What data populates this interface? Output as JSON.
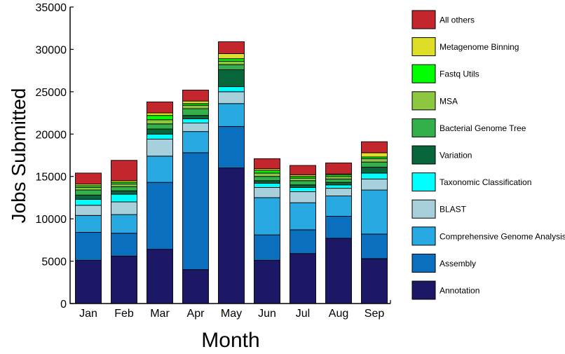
{
  "chart_data": {
    "type": "bar",
    "stacked": true,
    "title": "",
    "xlabel": "Month",
    "ylabel": "Jobs Submitted",
    "ylim": [
      0,
      35000
    ],
    "yticks": [
      0,
      5000,
      10000,
      15000,
      20000,
      25000,
      30000,
      35000
    ],
    "categories": [
      "Jan",
      "Feb",
      "Mar",
      "Apr",
      "May",
      "Jun",
      "Jul",
      "Aug",
      "Sep"
    ],
    "series": [
      {
        "name": "Annotation",
        "color": "#1c1866",
        "values": [
          5100,
          5600,
          6400,
          4000,
          16000,
          5100,
          5900,
          7700,
          5300
        ]
      },
      {
        "name": "Assembly",
        "color": "#0a6fbf",
        "values": [
          3300,
          2700,
          7900,
          13800,
          4900,
          3000,
          2800,
          2600,
          2900
        ]
      },
      {
        "name": "Comprehensive Genome Analysis",
        "color": "#29a9e1",
        "values": [
          2000,
          2200,
          3100,
          2500,
          2700,
          4400,
          3200,
          2400,
          5200
        ]
      },
      {
        "name": "BLAST",
        "color": "#a8d0dc",
        "values": [
          1200,
          1500,
          2000,
          1000,
          1400,
          1200,
          1300,
          900,
          1300
        ]
      },
      {
        "name": "Taxonomic Classification",
        "color": "#00ffff",
        "values": [
          700,
          900,
          600,
          500,
          600,
          500,
          500,
          400,
          700
        ]
      },
      {
        "name": "Variation",
        "color": "#07673a",
        "values": [
          500,
          400,
          600,
          400,
          2000,
          300,
          300,
          300,
          700
        ]
      },
      {
        "name": "Bacterial Genome Tree",
        "color": "#33b04a",
        "values": [
          600,
          500,
          600,
          800,
          600,
          500,
          500,
          400,
          600
        ]
      },
      {
        "name": "MSA",
        "color": "#8dc63f",
        "values": [
          300,
          300,
          500,
          400,
          400,
          400,
          300,
          300,
          400
        ]
      },
      {
        "name": "Fastq Utils",
        "color": "#00ff00",
        "values": [
          200,
          200,
          500,
          200,
          300,
          300,
          200,
          200,
          200
        ]
      },
      {
        "name": "Metagenome Binning",
        "color": "#dede27",
        "values": [
          200,
          200,
          300,
          300,
          600,
          200,
          200,
          100,
          500
        ]
      },
      {
        "name": "All others",
        "color": "#c4262e",
        "values": [
          1300,
          2400,
          1300,
          1300,
          1400,
          1200,
          1100,
          1300,
          1300
        ]
      }
    ],
    "legend_position": "right",
    "legend_order": [
      "All others",
      "Metagenome Binning",
      "Fastq Utils",
      "MSA",
      "Bacterial Genome Tree",
      "Variation",
      "Taxonomic Classification",
      "BLAST",
      "Comprehensive Genome Analysis",
      "Assembly",
      "Annotation"
    ]
  }
}
